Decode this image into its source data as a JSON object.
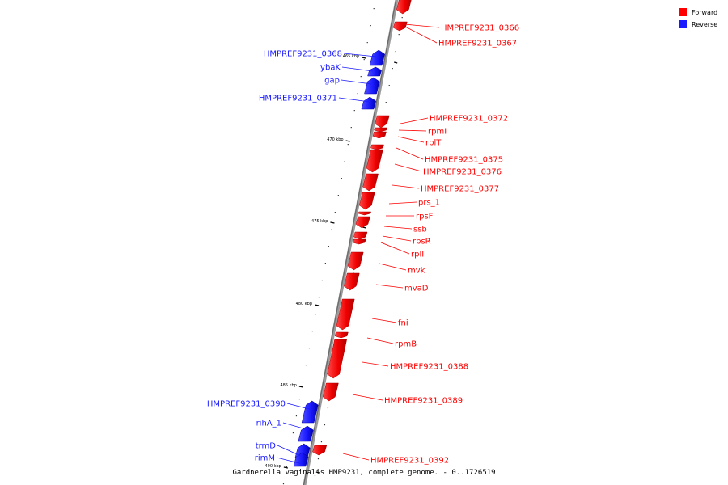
{
  "caption": "Gardnerella vaginalis HMP9231, complete genome. - 0..1726519",
  "colors": {
    "forward": "#ff0000",
    "reverse": "#1a1aff",
    "backbone": "#777777"
  },
  "legend": [
    {
      "label": "Forward",
      "color": "#ff0000"
    },
    {
      "label": "Reverse",
      "color": "#1a1aff"
    }
  ],
  "ticks": [
    "465 kbp",
    "470 kbp",
    "475 kbp",
    "480 kbp",
    "485 kbp",
    "490 kbp"
  ],
  "genes": [
    {
      "label": "HMPREF9231_0366",
      "strand": "forward"
    },
    {
      "label": "HMPREF9231_0367",
      "strand": "forward"
    },
    {
      "label": "HMPREF9231_0368",
      "strand": "reverse"
    },
    {
      "label": "ybaK",
      "strand": "reverse"
    },
    {
      "label": "gap",
      "strand": "reverse"
    },
    {
      "label": "HMPREF9231_0371",
      "strand": "reverse"
    },
    {
      "label": "HMPREF9231_0372",
      "strand": "forward"
    },
    {
      "label": "rpmI",
      "strand": "forward"
    },
    {
      "label": "rplT",
      "strand": "forward"
    },
    {
      "label": "HMPREF9231_0375",
      "strand": "forward"
    },
    {
      "label": "HMPREF9231_0376",
      "strand": "forward"
    },
    {
      "label": "HMPREF9231_0377",
      "strand": "forward"
    },
    {
      "label": "prs_1",
      "strand": "forward"
    },
    {
      "label": "rpsF",
      "strand": "forward"
    },
    {
      "label": "ssb",
      "strand": "forward"
    },
    {
      "label": "rpsR",
      "strand": "forward"
    },
    {
      "label": "rplI",
      "strand": "forward"
    },
    {
      "label": "mvk",
      "strand": "forward"
    },
    {
      "label": "mvaD",
      "strand": "forward"
    },
    {
      "label": "fni",
      "strand": "forward"
    },
    {
      "label": "rpmB",
      "strand": "forward"
    },
    {
      "label": "HMPREF9231_0388",
      "strand": "forward"
    },
    {
      "label": "HMPREF9231_0389",
      "strand": "forward"
    },
    {
      "label": "HMPREF9231_0390",
      "strand": "reverse"
    },
    {
      "label": "rihA_1",
      "strand": "reverse"
    },
    {
      "label": "trmD",
      "strand": "reverse"
    },
    {
      "label": "rimM",
      "strand": "reverse"
    },
    {
      "label": "HMPREF9231_0392",
      "strand": "forward"
    }
  ]
}
